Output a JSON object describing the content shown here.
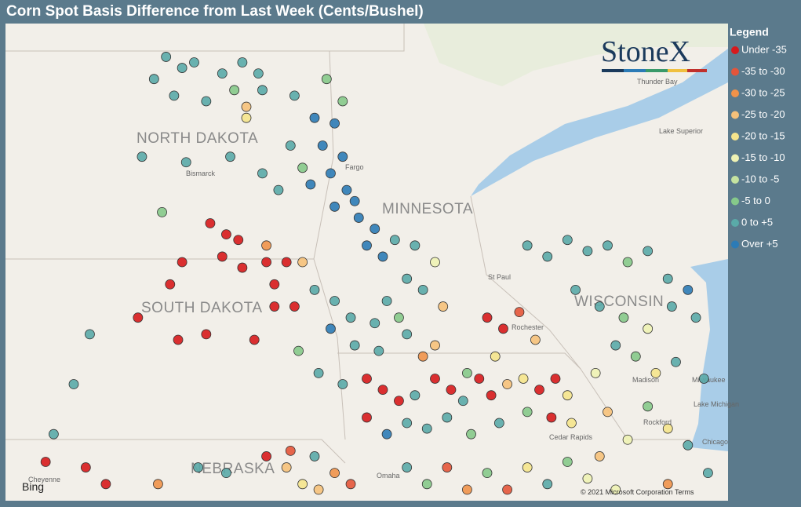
{
  "header": {
    "title": "Corn Spot Basis Difference from Last Week (Cents/Bushel)"
  },
  "logo": {
    "text": "StoneX"
  },
  "legend": {
    "title": "Legend",
    "items": [
      {
        "label": "Under -35",
        "color": "#d7191c"
      },
      {
        "label": "-35 to -30",
        "color": "#e4553a"
      },
      {
        "label": "-30 to -25",
        "color": "#f0924a"
      },
      {
        "label": "-25 to -20",
        "color": "#f6c17a"
      },
      {
        "label": "-20 to -15",
        "color": "#f5e48c"
      },
      {
        "label": "-15 to -10",
        "color": "#eef2b4"
      },
      {
        "label": "-10 to -5",
        "color": "#c5e3a0"
      },
      {
        "label": "-5 to 0",
        "color": "#86c98a"
      },
      {
        "label": "0 to +5",
        "color": "#5aaaa8"
      },
      {
        "label": "Over +5",
        "color": "#2c7bb6"
      }
    ]
  },
  "map": {
    "labels": {
      "nd": "NORTH DAKOTA",
      "sd": "SOUTH DAKOTA",
      "mn": "MINNESOTA",
      "wi": "WISCONSIN",
      "ne": "NEBRASKA",
      "bismarck": "Bismarck",
      "fargo": "Fargo",
      "thunder": "Thunder Bay",
      "superior": "Lake Superior",
      "stpaul": "St Paul",
      "rochester": "Rochester",
      "madison": "Madison",
      "milwaukee": "Milwaukee",
      "michigan": "Lake Michigan",
      "rockford": "Rockford",
      "chicago": "Chicago",
      "rapids": "Cedar Rapids",
      "omaha": "Omaha",
      "cheyenne": "Cheyenne"
    },
    "attribution": "Bing",
    "copyright": "© 2021 Microsoft Corporation Terms",
    "points": [
      [
        -101.0,
        48.7,
        8
      ],
      [
        -100.6,
        48.5,
        8
      ],
      [
        -100.3,
        48.6,
        8
      ],
      [
        -99.6,
        48.4,
        8
      ],
      [
        -99.1,
        48.6,
        8
      ],
      [
        -98.7,
        48.4,
        8
      ],
      [
        -101.3,
        48.3,
        8
      ],
      [
        -100.8,
        48.0,
        8
      ],
      [
        -100.0,
        47.9,
        8
      ],
      [
        -99.3,
        48.1,
        7
      ],
      [
        -98.6,
        48.1,
        8
      ],
      [
        -97.8,
        48.0,
        8
      ],
      [
        -99.0,
        47.6,
        4
      ],
      [
        -99.0,
        47.8,
        3
      ],
      [
        -101.6,
        46.9,
        8
      ],
      [
        -100.5,
        46.8,
        8
      ],
      [
        -99.4,
        46.9,
        8
      ],
      [
        -101.1,
        45.9,
        7
      ],
      [
        -98.6,
        46.6,
        8
      ],
      [
        -98.2,
        46.3,
        8
      ],
      [
        -97.3,
        47.6,
        9
      ],
      [
        -96.8,
        47.5,
        9
      ],
      [
        -97.1,
        47.1,
        9
      ],
      [
        -96.6,
        46.9,
        9
      ],
      [
        -96.9,
        46.6,
        9
      ],
      [
        -96.5,
        46.3,
        9
      ],
      [
        -96.8,
        46.0,
        9
      ],
      [
        -96.3,
        46.1,
        9
      ],
      [
        -97.4,
        46.4,
        9
      ],
      [
        -96.2,
        45.8,
        9
      ],
      [
        -95.8,
        45.6,
        9
      ],
      [
        -96.0,
        45.3,
        9
      ],
      [
        -95.6,
        45.1,
        9
      ],
      [
        -97.9,
        47.1,
        8
      ],
      [
        -97.6,
        46.7,
        7
      ],
      [
        -95.3,
        45.4,
        8
      ],
      [
        -94.8,
        45.3,
        8
      ],
      [
        -94.3,
        45.0,
        5
      ],
      [
        -96.6,
        47.9,
        7
      ],
      [
        -97.0,
        48.3,
        7
      ],
      [
        -99.9,
        45.7,
        0
      ],
      [
        -99.5,
        45.5,
        0
      ],
      [
        -99.2,
        45.4,
        0
      ],
      [
        -99.6,
        45.1,
        0
      ],
      [
        -99.1,
        44.9,
        0
      ],
      [
        -98.5,
        45.0,
        0
      ],
      [
        -98.0,
        45.0,
        0
      ],
      [
        -98.3,
        44.6,
        0
      ],
      [
        -98.3,
        44.2,
        0
      ],
      [
        -97.8,
        44.2,
        0
      ],
      [
        -100.6,
        45.0,
        0
      ],
      [
        -100.9,
        44.6,
        0
      ],
      [
        -101.7,
        44.0,
        0
      ],
      [
        -100.0,
        43.7,
        0
      ],
      [
        -98.8,
        43.6,
        0
      ],
      [
        -100.7,
        43.6,
        0
      ],
      [
        -102.9,
        43.7,
        8
      ],
      [
        -103.3,
        42.8,
        8
      ],
      [
        -98.5,
        45.3,
        2
      ],
      [
        -97.6,
        45.0,
        3
      ],
      [
        -97.3,
        44.5,
        8
      ],
      [
        -96.8,
        44.3,
        8
      ],
      [
        -96.4,
        44.0,
        8
      ],
      [
        -96.9,
        43.8,
        9
      ],
      [
        -96.3,
        43.5,
        8
      ],
      [
        -95.8,
        43.9,
        8
      ],
      [
        -95.5,
        44.3,
        8
      ],
      [
        -95.2,
        44.0,
        7
      ],
      [
        -95.7,
        43.4,
        8
      ],
      [
        -95.0,
        43.7,
        8
      ],
      [
        -94.6,
        43.3,
        2
      ],
      [
        -94.3,
        43.5,
        3
      ],
      [
        -95.0,
        44.7,
        8
      ],
      [
        -94.6,
        44.5,
        8
      ],
      [
        -94.1,
        44.2,
        3
      ],
      [
        -97.7,
        43.4,
        7
      ],
      [
        -97.2,
        43.0,
        8
      ],
      [
        -96.6,
        42.8,
        8
      ],
      [
        -96.0,
        42.9,
        0
      ],
      [
        -95.6,
        42.7,
        0
      ],
      [
        -95.2,
        42.5,
        0
      ],
      [
        -94.8,
        42.6,
        8
      ],
      [
        -94.3,
        42.9,
        0
      ],
      [
        -93.9,
        42.7,
        0
      ],
      [
        -93.6,
        42.5,
        8
      ],
      [
        -93.2,
        42.9,
        0
      ],
      [
        -92.9,
        42.6,
        0
      ],
      [
        -92.5,
        42.8,
        3
      ],
      [
        -92.1,
        42.9,
        4
      ],
      [
        -91.7,
        42.7,
        0
      ],
      [
        -91.3,
        42.9,
        0
      ],
      [
        -91.0,
        42.6,
        4
      ],
      [
        -93.0,
        44.0,
        0
      ],
      [
        -92.6,
        43.8,
        0
      ],
      [
        -92.2,
        44.1,
        1
      ],
      [
        -91.8,
        43.6,
        3
      ],
      [
        -92.8,
        43.3,
        4
      ],
      [
        -93.5,
        43.0,
        7
      ],
      [
        -94.0,
        42.2,
        8
      ],
      [
        -94.5,
        42.0,
        8
      ],
      [
        -95.0,
        42.1,
        8
      ],
      [
        -95.5,
        41.9,
        9
      ],
      [
        -96.0,
        42.2,
        0
      ],
      [
        -93.4,
        41.9,
        7
      ],
      [
        -92.7,
        42.1,
        8
      ],
      [
        -92.0,
        42.3,
        7
      ],
      [
        -91.4,
        42.2,
        0
      ],
      [
        -90.9,
        42.1,
        4
      ],
      [
        -98.0,
        41.3,
        3
      ],
      [
        -97.6,
        41.0,
        4
      ],
      [
        -97.2,
        40.9,
        3
      ],
      [
        -96.8,
        41.2,
        2
      ],
      [
        -96.4,
        41.0,
        1
      ],
      [
        -98.5,
        41.5,
        0
      ],
      [
        -97.9,
        41.6,
        1
      ],
      [
        -97.3,
        41.5,
        8
      ],
      [
        -99.5,
        41.2,
        8
      ],
      [
        -100.2,
        41.3,
        8
      ],
      [
        -101.2,
        41.0,
        2
      ],
      [
        -102.5,
        41.0,
        0
      ],
      [
        -103.0,
        41.3,
        0
      ],
      [
        -104.0,
        41.4,
        0
      ],
      [
        -103.8,
        41.9,
        8
      ],
      [
        -95.0,
        41.3,
        8
      ],
      [
        -94.5,
        41.0,
        7
      ],
      [
        -94.0,
        41.3,
        1
      ],
      [
        -93.5,
        40.9,
        2
      ],
      [
        -93.0,
        41.2,
        7
      ],
      [
        -92.5,
        40.9,
        1
      ],
      [
        -92.0,
        41.3,
        4
      ],
      [
        -91.5,
        41.0,
        8
      ],
      [
        -91.0,
        41.4,
        7
      ],
      [
        -90.5,
        41.1,
        5
      ],
      [
        -92.0,
        45.3,
        8
      ],
      [
        -91.5,
        45.1,
        8
      ],
      [
        -91.0,
        45.4,
        8
      ],
      [
        -90.5,
        45.2,
        8
      ],
      [
        -90.0,
        45.3,
        8
      ],
      [
        -89.5,
        45.0,
        7
      ],
      [
        -89.0,
        45.2,
        8
      ],
      [
        -88.5,
        44.7,
        8
      ],
      [
        -90.8,
        44.5,
        8
      ],
      [
        -90.2,
        44.2,
        8
      ],
      [
        -89.6,
        44.0,
        7
      ],
      [
        -89.0,
        43.8,
        5
      ],
      [
        -88.4,
        44.2,
        8
      ],
      [
        -88.0,
        44.5,
        9
      ],
      [
        -87.8,
        44.0,
        8
      ],
      [
        -89.3,
        43.3,
        7
      ],
      [
        -88.8,
        43.0,
        4
      ],
      [
        -88.3,
        43.2,
        8
      ],
      [
        -89.8,
        43.5,
        8
      ],
      [
        -90.3,
        43.0,
        5
      ],
      [
        -89.0,
        42.4,
        7
      ],
      [
        -88.5,
        42.0,
        4
      ],
      [
        -88.0,
        41.7,
        8
      ],
      [
        -89.5,
        41.8,
        5
      ],
      [
        -90.0,
        42.3,
        3
      ],
      [
        -87.6,
        42.9,
        8
      ],
      [
        -87.5,
        41.2,
        8
      ],
      [
        -88.5,
        41.0,
        2
      ],
      [
        -89.8,
        40.9,
        5
      ],
      [
        -90.2,
        41.5,
        3
      ]
    ]
  }
}
